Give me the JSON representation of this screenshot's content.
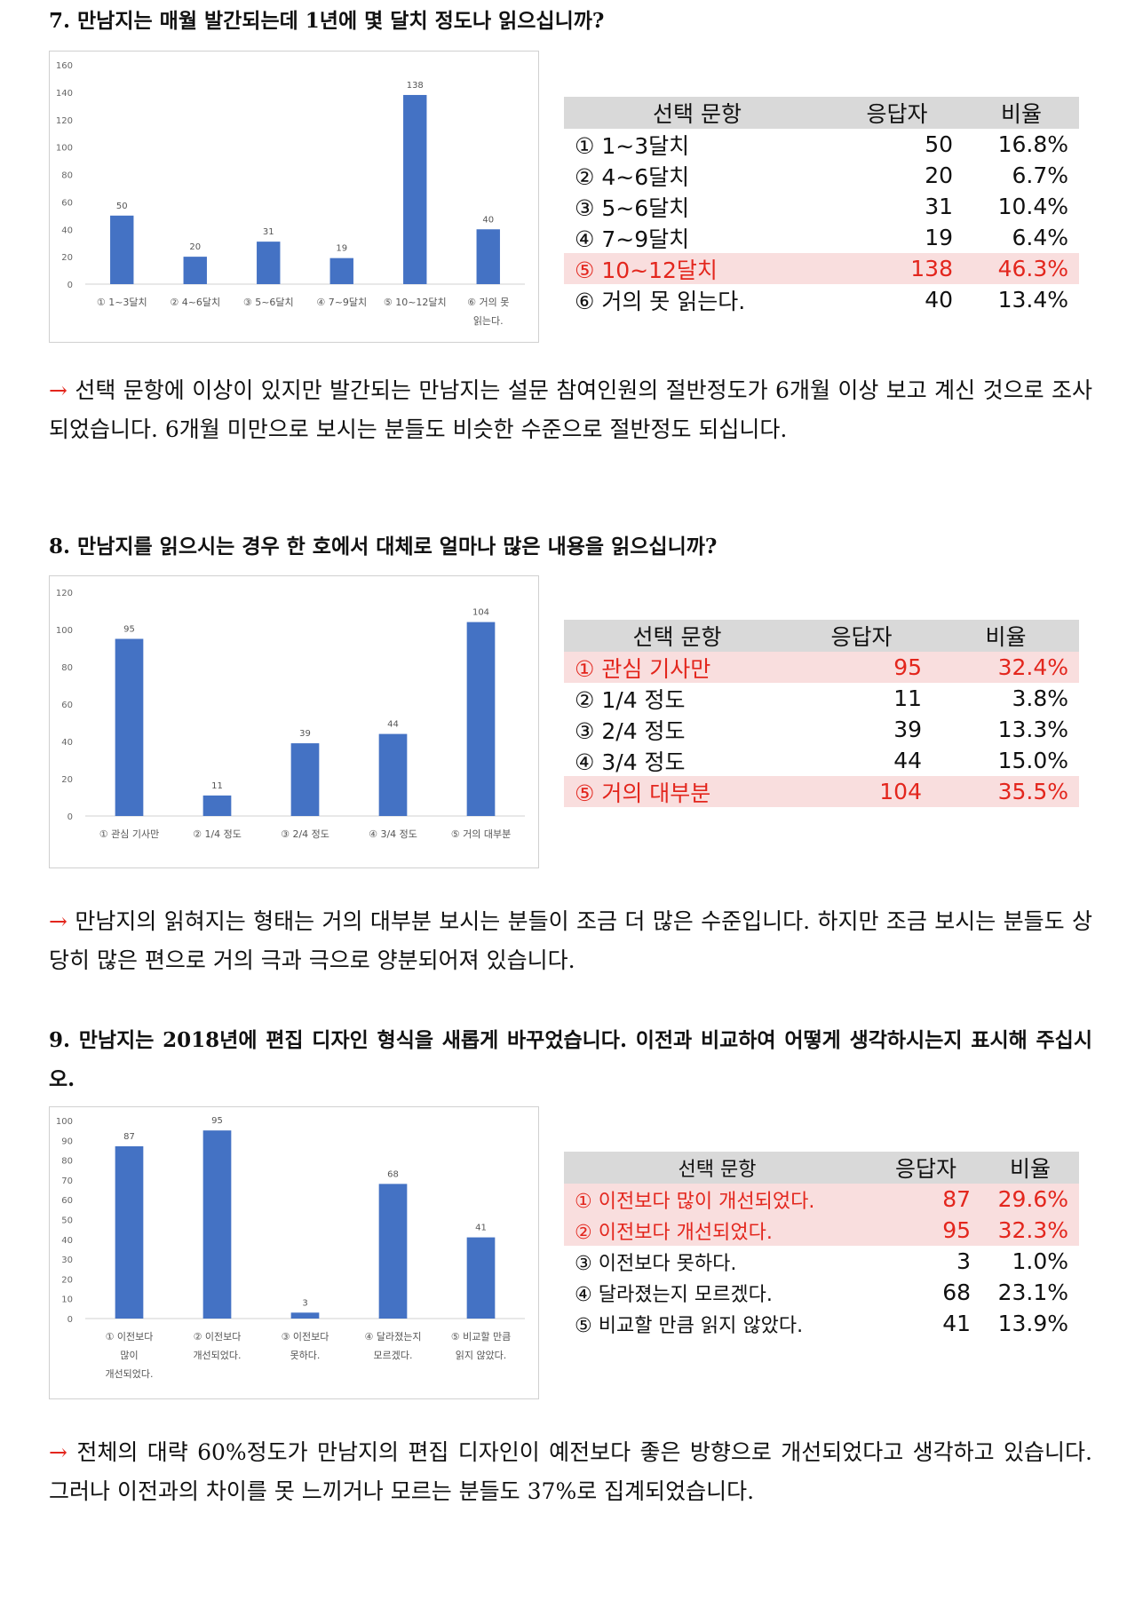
{
  "sections": [
    {
      "title": "7. 만남지는 매월 발간되는데 1년에 몇 달치 정도나 읽으십니까?",
      "table": {
        "headers": [
          "선택 문항",
          "응답자",
          "비율"
        ],
        "rows": [
          {
            "option": "① 1~3달치",
            "count": "50",
            "pct": "16.8%",
            "highlight": false
          },
          {
            "option": "② 4~6달치",
            "count": "20",
            "pct": "6.7%",
            "highlight": false
          },
          {
            "option": "③ 5~6달치",
            "count": "31",
            "pct": "10.4%",
            "highlight": false
          },
          {
            "option": "④ 7~9달치",
            "count": "19",
            "pct": "6.4%",
            "highlight": false
          },
          {
            "option": "⑤ 10~12달치",
            "count": "138",
            "pct": "46.3%",
            "highlight": true
          },
          {
            "option": "⑥ 거의 못 읽는다.",
            "count": "40",
            "pct": "13.4%",
            "highlight": false
          }
        ]
      },
      "arrow": "→",
      "comment": "선택 문항에 이상이 있지만 발간되는 만남지는 설문 참여인원의 절반정도가 6개월 이상 보고 계신 것으로 조사되었습니다. 6개월 미만으로 보시는 분들도 비슷한 수준으로 절반정도 되십니다."
    },
    {
      "title": "8. 만남지를 읽으시는 경우 한 호에서 대체로 얼마나 많은 내용을 읽으십니까?",
      "table": {
        "headers": [
          "선택 문항",
          "응답자",
          "비율"
        ],
        "rows": [
          {
            "option": "① 관심 기사만",
            "count": "95",
            "pct": "32.4%",
            "highlight": true
          },
          {
            "option": "② 1/4 정도",
            "count": "11",
            "pct": "3.8%",
            "highlight": false
          },
          {
            "option": "③ 2/4 정도",
            "count": "39",
            "pct": "13.3%",
            "highlight": false
          },
          {
            "option": "④ 3/4 정도",
            "count": "44",
            "pct": "15.0%",
            "highlight": false
          },
          {
            "option": "⑤ 거의 대부분",
            "count": "104",
            "pct": "35.5%",
            "highlight": true
          }
        ]
      },
      "arrow": "→",
      "comment": "만남지의 읽혀지는 형태는 거의 대부분 보시는 분들이 조금 더 많은 수준입니다. 하지만 조금 보시는 분들도 상당히 많은 편으로 거의 극과 극으로 양분되어져 있습니다."
    },
    {
      "title": "9. 만남지는 2018년에 편집 디자인 형식을 새롭게 바꾸었습니다. 이전과 비교하여 어떻게 생각하시는지 표시해 주십시오.",
      "table": {
        "headers": [
          "선택 문항",
          "응답자",
          "비율"
        ],
        "rows": [
          {
            "option": "① 이전보다 많이 개선되었다.",
            "count": "87",
            "pct": "29.6%",
            "highlight": true
          },
          {
            "option": "② 이전보다 개선되었다.",
            "count": "95",
            "pct": "32.3%",
            "highlight": true
          },
          {
            "option": "③ 이전보다 못하다.",
            "count": "3",
            "pct": "1.0%",
            "highlight": false
          },
          {
            "option": "④ 달라졌는지 모르겠다.",
            "count": "68",
            "pct": "23.1%",
            "highlight": false
          },
          {
            "option": "⑤ 비교할 만큼 읽지 않았다.",
            "count": "41",
            "pct": "13.9%",
            "highlight": false
          }
        ]
      },
      "arrow": "→",
      "comment": "전체의 대략 60%정도가 만남지의 편집 디자인이 예전보다 좋은 방향으로 개선되었다고 생각하고 있습니다. 그러나 이전과의 차이를 못 느끼거나 모르는 분들도 37%로 집계되었습니다."
    }
  ],
  "chart_data": [
    {
      "type": "bar",
      "categories": [
        [
          "① 1~3달치"
        ],
        [
          "② 4~6달치"
        ],
        [
          "③ 5~6달치"
        ],
        [
          "④ 7~9달치"
        ],
        [
          "⑤ 10~12달치"
        ],
        [
          "⑥ 거의 못",
          "읽는다."
        ]
      ],
      "values": [
        50,
        20,
        31,
        19,
        138,
        40
      ],
      "ylim": [
        0,
        160
      ],
      "yticks": [
        0,
        20,
        40,
        60,
        80,
        100,
        120,
        140,
        160
      ],
      "bar_color": "#4472c4",
      "data_labels": true,
      "grid": false
    },
    {
      "type": "bar",
      "categories": [
        [
          "① 관심 기사만"
        ],
        [
          "② 1/4 정도"
        ],
        [
          "③ 2/4 정도"
        ],
        [
          "④ 3/4 정도"
        ],
        [
          "⑤ 거의 대부분"
        ]
      ],
      "values": [
        95,
        11,
        39,
        44,
        104
      ],
      "ylim": [
        0,
        120
      ],
      "yticks": [
        0,
        20,
        40,
        60,
        80,
        100,
        120
      ],
      "bar_color": "#4472c4",
      "data_labels": true,
      "grid": false
    },
    {
      "type": "bar",
      "categories": [
        [
          "① 이전보다",
          "많이",
          "개선되었다."
        ],
        [
          "② 이전보다",
          "개선되었다."
        ],
        [
          "③ 이전보다",
          "못하다."
        ],
        [
          "④ 달라졌는지",
          "모르겠다."
        ],
        [
          "⑤ 비교할 만큼",
          "읽지 않았다."
        ]
      ],
      "values": [
        87,
        95,
        3,
        68,
        41
      ],
      "ylim": [
        0,
        100
      ],
      "yticks": [
        0,
        10,
        20,
        30,
        40,
        50,
        60,
        70,
        80,
        90,
        100
      ],
      "bar_color": "#4472c4",
      "data_labels": true,
      "grid": false
    }
  ]
}
